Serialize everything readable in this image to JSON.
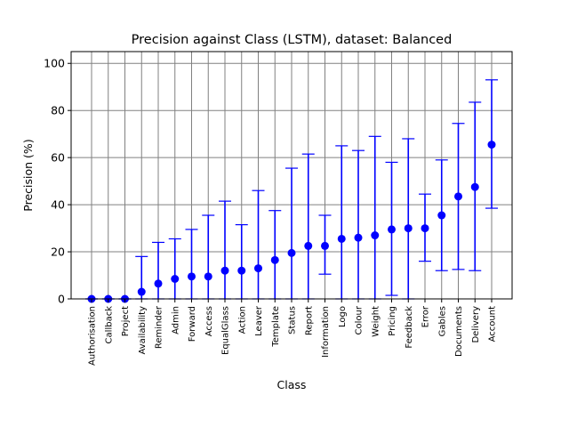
{
  "chart_data": {
    "type": "scatter",
    "title": "Precision against Class (LSTM), dataset: Balanced",
    "xlabel": "Class",
    "ylabel": "Precision (%)",
    "ylim": [
      0,
      105
    ],
    "yticks": [
      0,
      20,
      40,
      60,
      80,
      100
    ],
    "grid": true,
    "marker_color": "#0000ff",
    "grid_color": "#808080",
    "categories": [
      "Authorisation",
      "Callback",
      "Project",
      "Availability",
      "Reminder",
      "Admin",
      "Forward",
      "Access",
      "EqualGlass",
      "Action",
      "Leaver",
      "Template",
      "Status",
      "Report",
      "Information",
      "Logo",
      "Colour",
      "Weight",
      "Pricing",
      "Feedback",
      "Error",
      "Gables",
      "Documents",
      "Delivery",
      "Account"
    ],
    "values": [
      0,
      0,
      0,
      3,
      6.5,
      8.5,
      9.5,
      9.5,
      12,
      12,
      13,
      16.5,
      19.5,
      22.5,
      22.5,
      25.5,
      26,
      27,
      29.5,
      30,
      30,
      35.5,
      43.5,
      47.5,
      65.5
    ],
    "err_low": [
      0,
      0,
      0,
      0,
      0,
      0,
      0,
      0,
      0,
      0,
      0,
      0,
      0,
      0,
      10.5,
      0,
      0,
      0,
      1.5,
      0,
      16,
      12,
      12.5,
      12,
      38.5
    ],
    "err_high": [
      0,
      0,
      0,
      18,
      24,
      25.5,
      29.5,
      35.5,
      41.5,
      31.5,
      46,
      37.5,
      55.5,
      61.5,
      35.5,
      65,
      63,
      69,
      58,
      68,
      44.5,
      59,
      74.5,
      83.5,
      93
    ]
  }
}
